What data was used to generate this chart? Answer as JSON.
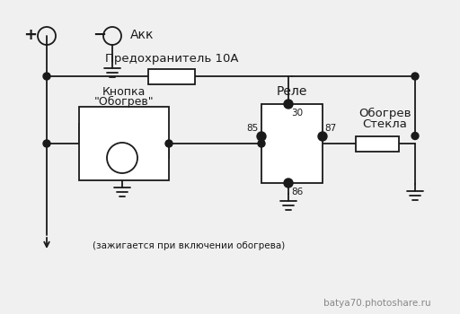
{
  "bg_color": "#f0f0f0",
  "line_color": "#1a1a1a",
  "text_color": "#1a1a1a",
  "watermark": "batya70.photoshare.ru",
  "watermark_color": "#888888",
  "labels": {
    "plus": "+",
    "minus": "−",
    "akk": "Акк",
    "fuse": "Предохранитель 10А",
    "button_line1": "Кнопка",
    "button_line2": "\"Обогрев\"",
    "relay": "Реле",
    "heater_line1": "Обогрев",
    "heater_line2": "Стекла",
    "note": "(зажигается при включении обогрева)",
    "pin30": "30",
    "pin85": "85",
    "pin86": "86",
    "pin87": "87"
  }
}
